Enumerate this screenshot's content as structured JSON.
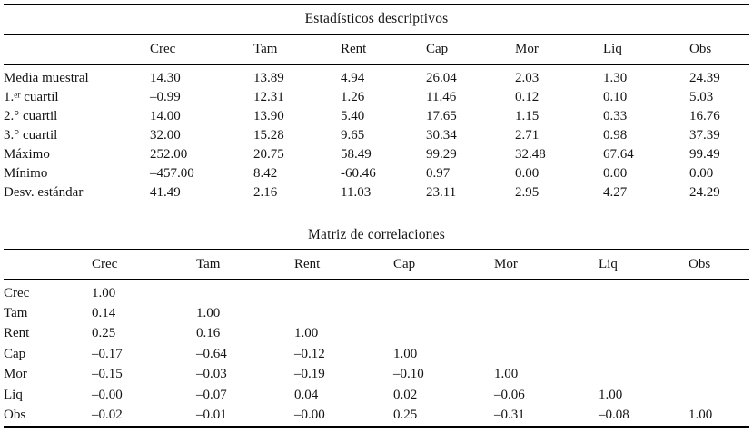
{
  "page": {
    "background": "#ffffff",
    "text_color": "#141414",
    "rule_color": "#000000"
  },
  "tables": {
    "t1": {
      "title": "Estadísticos descriptivos",
      "columns": [
        "Crec",
        "Tam",
        "Rent",
        "Cap",
        "Mor",
        "Liq",
        "Obs"
      ],
      "rows": [
        {
          "label": "Media muestral",
          "values": [
            "14.30",
            "13.89",
            "4.94",
            "26.04",
            "2.03",
            "1.30",
            "24.39"
          ]
        },
        {
          "label": "1.^{er} cuartil",
          "values": [
            "–0.99",
            "12.31",
            "1.26",
            "11.46",
            "0.12",
            "0.10",
            "5.03"
          ]
        },
        {
          "label": "2.° cuartil",
          "values": [
            "14.00",
            "13.90",
            "5.40",
            "17.65",
            "1.15",
            "0.33",
            "16.76"
          ]
        },
        {
          "label": "3.° cuartil",
          "values": [
            "32.00",
            "15.28",
            "9.65",
            "30.34",
            "2.71",
            "0.98",
            "37.39"
          ]
        },
        {
          "label": "Máximo",
          "values": [
            "252.00",
            "20.75",
            "58.49",
            "99.29",
            "32.48",
            "67.64",
            "99.49"
          ]
        },
        {
          "label": "Mínimo",
          "values": [
            "–457.00",
            "8.42",
            "-60.46",
            "0.97",
            "0.00",
            "0.00",
            "0.00"
          ]
        },
        {
          "label": "Desv. estándar",
          "values": [
            "41.49",
            "2.16",
            "11.03",
            "23.11",
            "2.95",
            "4.27",
            "24.29"
          ]
        }
      ]
    },
    "t2": {
      "title": "Matriz de correlaciones",
      "columns": [
        "Crec",
        "Tam",
        "Rent",
        "Cap",
        "Mor",
        "Liq",
        "Obs"
      ],
      "rows": [
        {
          "label": "Crec",
          "values": [
            "1.00"
          ]
        },
        {
          "label": "Tam",
          "values": [
            "0.14",
            "1.00"
          ]
        },
        {
          "label": "Rent",
          "values": [
            "0.25",
            "0.16",
            "1.00"
          ]
        },
        {
          "label": "Cap",
          "values": [
            "–0.17",
            "–0.64",
            "–0.12",
            "1.00"
          ]
        },
        {
          "label": "Mor",
          "values": [
            "–0.15",
            "–0.03",
            "–0.19",
            "–0.10",
            "1.00"
          ]
        },
        {
          "label": "Liq",
          "values": [
            "–0.00",
            "–0.07",
            "0.04",
            "0.02",
            "–0.06",
            "1.00"
          ]
        },
        {
          "label": "Obs",
          "values": [
            "–0.02",
            "–0.01",
            "–0.00",
            "0.25",
            "–0.31",
            "–0.08",
            "1.00"
          ]
        }
      ]
    }
  }
}
